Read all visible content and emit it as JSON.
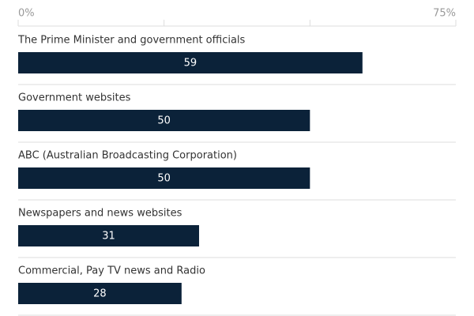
{
  "chart_data": {
    "type": "hbar",
    "categories": [
      "The Prime Minister and government officials",
      "Government websites",
      "ABC (Australian Broadcasting Corporation)",
      "Newspapers and news websites",
      "Commercial, Pay TV news and Radio"
    ],
    "values": [
      59,
      50,
      50,
      31,
      28
    ],
    "color": "#0b2239",
    "xlim": [
      0,
      75
    ],
    "xticks": [
      {
        "value": 0,
        "label": "0%"
      },
      {
        "value": 25,
        "label": null
      },
      {
        "value": 50,
        "label": null
      },
      {
        "value": 75,
        "label": "75%"
      }
    ]
  }
}
